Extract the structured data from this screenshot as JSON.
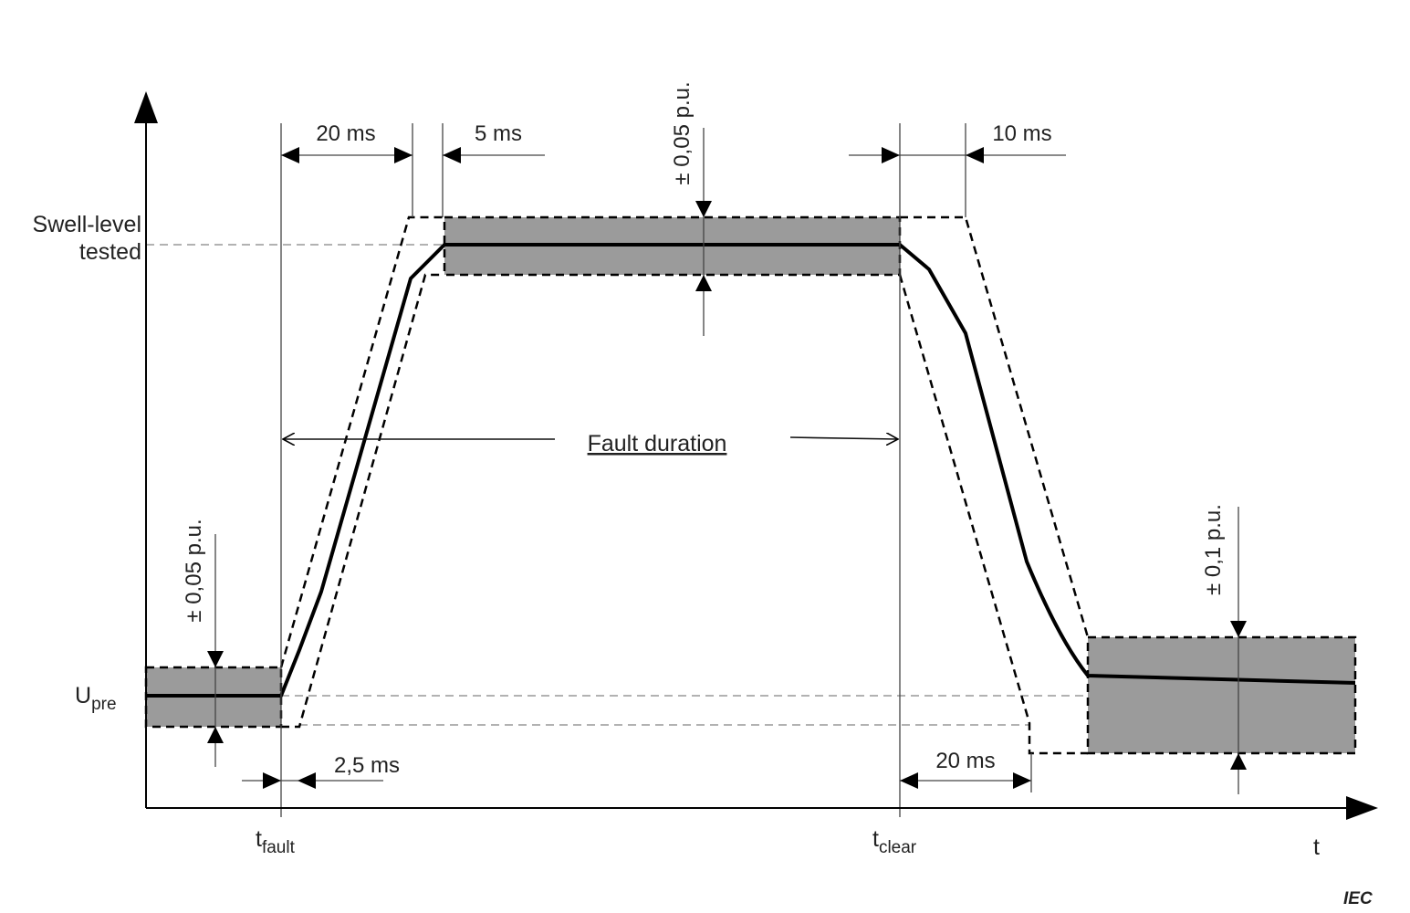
{
  "labels": {
    "swell_line1": "Swell-level",
    "swell_line2": "tested",
    "upre_main": "U",
    "upre_sub": "pre",
    "t_fault_main": "t",
    "t_fault_sub": "fault",
    "t_clear_main": "t",
    "t_clear_sub": "clear",
    "t_axis": "t",
    "iec": "IEC",
    "fault_duration": "Fault duration"
  },
  "dimensions": {
    "rise_20ms": "20 ms",
    "settle_5ms": "5 ms",
    "fall_10ms": "10 ms",
    "delay_2_5ms": "2,5 ms",
    "fall_20ms": "20 ms"
  },
  "tolerances": {
    "pre_band": "± 0,05 p.u.",
    "swell_band": "± 0,05 p.u.",
    "post_band": "± 0,1 p.u."
  }
}
